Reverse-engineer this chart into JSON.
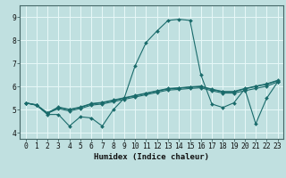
{
  "xlabel": "Humidex (Indice chaleur)",
  "bg_color": "#c0e0e0",
  "grid_color": "#e8f8f8",
  "line_color": "#1a6b6b",
  "xlim": [
    -0.5,
    23.5
  ],
  "ylim": [
    3.75,
    9.5
  ],
  "xticks": [
    0,
    1,
    2,
    3,
    4,
    5,
    6,
    7,
    8,
    9,
    10,
    11,
    12,
    13,
    14,
    15,
    16,
    17,
    18,
    19,
    20,
    21,
    22,
    23
  ],
  "yticks": [
    4,
    5,
    6,
    7,
    8,
    9
  ],
  "lines": [
    {
      "x": [
        0,
        1,
        2,
        3,
        4,
        5,
        6,
        7,
        8,
        9,
        10,
        11,
        12,
        13,
        14,
        15,
        16,
        17,
        18,
        19,
        20,
        21,
        22,
        23
      ],
      "y": [
        5.3,
        5.2,
        4.8,
        4.8,
        4.3,
        4.7,
        4.65,
        4.3,
        5.0,
        5.5,
        6.9,
        7.9,
        8.4,
        8.85,
        8.9,
        8.85,
        6.5,
        5.25,
        5.1,
        5.3,
        5.9,
        4.4,
        5.5,
        6.2
      ]
    },
    {
      "x": [
        0,
        1,
        2,
        3,
        4,
        5,
        6,
        7,
        8,
        9,
        10,
        11,
        12,
        13,
        14,
        15,
        16,
        17,
        18,
        19,
        20,
        21,
        22,
        23
      ],
      "y": [
        5.3,
        5.2,
        4.85,
        5.05,
        4.95,
        5.05,
        5.2,
        5.25,
        5.35,
        5.45,
        5.55,
        5.65,
        5.75,
        5.85,
        5.88,
        5.92,
        5.95,
        5.82,
        5.72,
        5.72,
        5.82,
        5.92,
        6.02,
        6.2
      ]
    },
    {
      "x": [
        0,
        1,
        2,
        3,
        4,
        5,
        6,
        7,
        8,
        9,
        10,
        11,
        12,
        13,
        14,
        15,
        16,
        17,
        18,
        19,
        20,
        21,
        22,
        23
      ],
      "y": [
        5.3,
        5.2,
        4.85,
        5.1,
        5.0,
        5.1,
        5.25,
        5.3,
        5.4,
        5.5,
        5.6,
        5.7,
        5.8,
        5.9,
        5.93,
        5.97,
        6.0,
        5.87,
        5.77,
        5.77,
        5.9,
        6.0,
        6.1,
        6.25
      ]
    },
    {
      "x": [
        0,
        1,
        2,
        3,
        4,
        5,
        6,
        7,
        8,
        9,
        10,
        11,
        12,
        13,
        14,
        15,
        16,
        17,
        18,
        19,
        20,
        21,
        22,
        23
      ],
      "y": [
        5.3,
        5.22,
        4.87,
        5.12,
        5.02,
        5.12,
        5.27,
        5.32,
        5.42,
        5.52,
        5.62,
        5.72,
        5.82,
        5.92,
        5.95,
        5.99,
        6.02,
        5.89,
        5.79,
        5.79,
        5.92,
        6.02,
        6.12,
        6.27
      ]
    }
  ]
}
